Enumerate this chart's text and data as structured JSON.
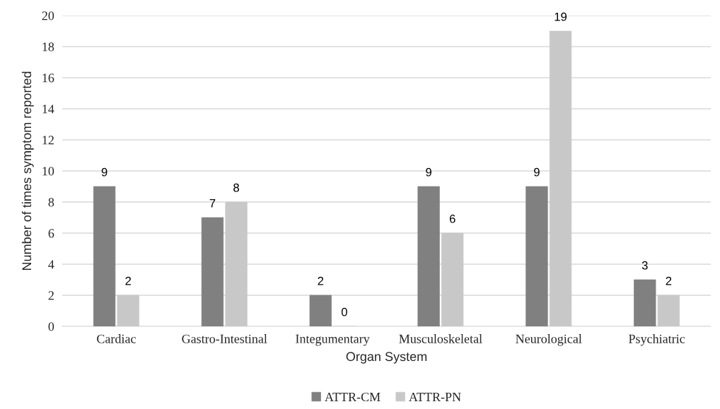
{
  "chart_data": {
    "type": "bar",
    "xlabel": "Organ System",
    "ylabel": "Number of times symptom reported",
    "categories": [
      "Cardiac",
      "Gastro-Intestinal",
      "Integumentary",
      "Musculoskeletal",
      "Neurological",
      "Psychiatric"
    ],
    "series": [
      {
        "name": "ATTR-CM",
        "color": "#808080",
        "values": [
          9,
          7,
          2,
          9,
          9,
          3
        ]
      },
      {
        "name": "ATTR-PN",
        "color": "#c8c8c8",
        "values": [
          2,
          8,
          0,
          6,
          19,
          2
        ]
      }
    ],
    "ylim": [
      0,
      20
    ],
    "yticks": [
      0,
      2,
      4,
      6,
      8,
      10,
      12,
      14,
      16,
      18,
      20
    ],
    "grid": "y",
    "legend": "bottom",
    "data_labels": true
  }
}
